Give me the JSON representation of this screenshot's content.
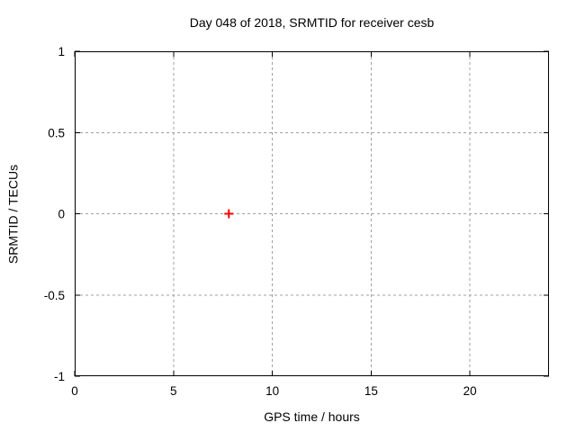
{
  "window": {
    "background": "#ffffff"
  },
  "chart_data": {
    "type": "scatter",
    "title": "Day 048 of 2018, SRMTID for receiver cesb",
    "xlabel": "GPS time / hours",
    "ylabel": "SRMTID / TECUs",
    "xlim": [
      0,
      24
    ],
    "ylim": [
      -1,
      1
    ],
    "x_ticks": [
      0,
      5,
      10,
      15,
      20
    ],
    "y_ticks": [
      -1,
      -0.5,
      0,
      0.5,
      1
    ],
    "grid": true,
    "legend": "none",
    "series": [
      {
        "name": "SRMTID",
        "marker": "plus",
        "color": "#ff0000",
        "points": [
          {
            "x": 7.8,
            "y": 0.0
          }
        ]
      }
    ],
    "colors": {
      "border": "#000000",
      "grid": "#a0a0a0",
      "text": "#000000"
    }
  }
}
